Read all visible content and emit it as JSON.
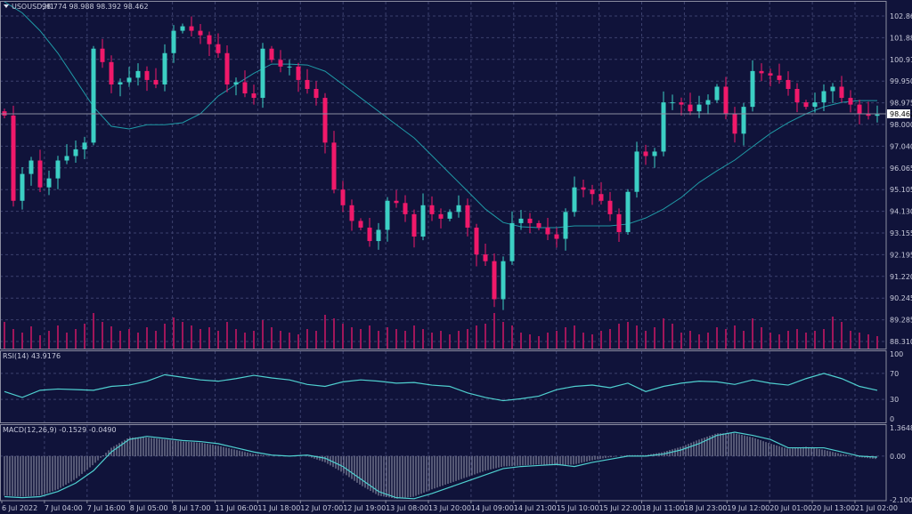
{
  "header": {
    "symbol": "USOUSD,H1",
    "ohlc": "98.774 98.988 98.392 98.462",
    "menu_icon": "triangle-down-icon"
  },
  "colors": {
    "background": "#10133a",
    "grid": "#3c416e",
    "bull": "#3ccfc4",
    "bear": "#f0196a",
    "ma": "#1f9aa6",
    "rsi": "#4fd0d0",
    "macd_line": "#4fd0d0",
    "macd_hist": "#9a9cb0",
    "volume": "#a0165a"
  },
  "chart_data": [
    {
      "type": "candlestick",
      "title": "USOUSD,H1",
      "price_ticks": [
        "102.860",
        "101.885",
        "100.910",
        "99.950",
        "98.975",
        "98.000",
        "97.040",
        "96.065",
        "95.105",
        "94.130",
        "93.155",
        "92.195",
        "91.220",
        "90.245",
        "89.285",
        "88.310"
      ],
      "ylim": [
        88.31,
        102.86
      ],
      "current_price": "98.462",
      "time_labels": [
        "6 Jul 2022",
        "7 Jul 04:00",
        "7 Jul 16:00",
        "8 Jul 05:00",
        "8 Jul 17:00",
        "11 Jul 06:00",
        "11 Jul 18:00",
        "12 Jul 07:00",
        "12 Jul 19:00",
        "13 Jul 08:00",
        "13 Jul 20:00",
        "14 Jul 09:00",
        "14 Jul 21:00",
        "15 Jul 10:00",
        "15 Jul 22:00",
        "18 Jul 11:00",
        "18 Jul 23:00",
        "19 Jul 12:00",
        "20 Jul 01:00",
        "20 Jul 13:00",
        "21 Jul 02:00"
      ],
      "closes": [
        98.41,
        94.6,
        95.8,
        96.4,
        95.2,
        95.6,
        96.4,
        96.6,
        96.9,
        97.2,
        101.4,
        100.8,
        99.8,
        99.9,
        100.1,
        100.4,
        100.0,
        99.8,
        101.2,
        102.2,
        102.4,
        102.2,
        102.0,
        101.6,
        101.2,
        99.8,
        99.9,
        99.4,
        99.2,
        101.4,
        100.9,
        100.6,
        100.6,
        100.0,
        99.6,
        99.2,
        97.2,
        95.1,
        94.4,
        93.7,
        93.4,
        92.8,
        93.3,
        94.6,
        94.5,
        94.0,
        93.0,
        94.4,
        94.0,
        93.8,
        94.1,
        94.4,
        93.4,
        92.2,
        91.9,
        90.2,
        91.9,
        93.6,
        93.8,
        93.6,
        93.4,
        93.1,
        92.9,
        94.1,
        95.2,
        95.1,
        94.9,
        94.6,
        94.0,
        93.2,
        95.0,
        96.8,
        96.6,
        96.8,
        99.0,
        99.0,
        98.9,
        98.6,
        98.9,
        99.1,
        99.7,
        98.5,
        97.6,
        98.8,
        100.4,
        100.3,
        100.2,
        100.0,
        99.6,
        99.0,
        98.8,
        99.0,
        99.5,
        99.7,
        99.2,
        98.9,
        98.5,
        98.4,
        98.46
      ],
      "moving_average": [
        103.6,
        103.0,
        102.2,
        101.2,
        100.0,
        98.8,
        97.93,
        97.81,
        98.0,
        98.0,
        98.09,
        98.49,
        99.28,
        99.8,
        100.3,
        100.71,
        100.71,
        100.67,
        100.39,
        99.8,
        99.2,
        98.6,
        98.0,
        97.41,
        96.62,
        95.82,
        95.03,
        94.23,
        93.63,
        93.44,
        93.4,
        93.4,
        93.48,
        93.48,
        93.48,
        93.56,
        93.83,
        94.23,
        94.75,
        95.42,
        95.94,
        96.42,
        97.02,
        97.61,
        98.09,
        98.49,
        98.8,
        99.0,
        99.08,
        99.08
      ],
      "volume": [
        30,
        22,
        18,
        25,
        15,
        20,
        26,
        18,
        22,
        28,
        40,
        30,
        25,
        20,
        22,
        18,
        24,
        20,
        28,
        35,
        30,
        26,
        22,
        24,
        20,
        30,
        22,
        18,
        20,
        32,
        24,
        20,
        18,
        16,
        22,
        20,
        38,
        34,
        28,
        24,
        22,
        26,
        20,
        24,
        22,
        20,
        26,
        22,
        18,
        20,
        16,
        20,
        22,
        26,
        28,
        40,
        30,
        26,
        18,
        16,
        14,
        18,
        20,
        24,
        26,
        18,
        16,
        20,
        22,
        28,
        30,
        26,
        20,
        24,
        34,
        28,
        18,
        20,
        16,
        18,
        24,
        22,
        26,
        20,
        34,
        24,
        18,
        16,
        20,
        22,
        18,
        20,
        22,
        36,
        30,
        20,
        18,
        16,
        14
      ]
    },
    {
      "type": "line",
      "title": "RSI(14) 43.9176",
      "ylim": [
        0,
        100
      ],
      "ticks": [
        "100",
        "70",
        "30",
        "0"
      ],
      "values": [
        42,
        33,
        44,
        46,
        45,
        44,
        50,
        52,
        58,
        68,
        64,
        60,
        58,
        62,
        67,
        63,
        60,
        53,
        50,
        57,
        60,
        58,
        55,
        56,
        52,
        50,
        40,
        33,
        28,
        31,
        35,
        45,
        50,
        52,
        48,
        55,
        42,
        50,
        55,
        58,
        57,
        53,
        60,
        55,
        52,
        62,
        70,
        62,
        50,
        43.9
      ]
    },
    {
      "type": "line",
      "title": "MACD(12,26,9) -0.1529 -0.0490",
      "ylim": [
        -2.1005,
        1.3648
      ],
      "ticks": [
        "1.3648",
        "0.00",
        "-2.1005"
      ],
      "signal": [
        -1.95,
        -2.0,
        -1.95,
        -1.7,
        -1.3,
        -0.7,
        0.2,
        0.8,
        0.95,
        0.85,
        0.75,
        0.7,
        0.6,
        0.4,
        0.2,
        0.05,
        0.0,
        0.05,
        -0.1,
        -0.5,
        -1.1,
        -1.7,
        -2.0,
        -2.05,
        -1.8,
        -1.5,
        -1.2,
        -0.9,
        -0.6,
        -0.5,
        -0.45,
        -0.4,
        -0.5,
        -0.3,
        -0.15,
        0.0,
        0.0,
        0.1,
        0.3,
        0.6,
        1.0,
        1.15,
        1.0,
        0.8,
        0.4,
        0.4,
        0.4,
        0.2,
        0.0,
        -0.05
      ],
      "histogram": [
        -1.9,
        -1.95,
        -1.9,
        -1.6,
        -1.1,
        -0.4,
        0.4,
        0.9,
        0.9,
        0.8,
        0.7,
        0.65,
        0.5,
        0.3,
        0.1,
        0.0,
        0.0,
        0.0,
        -0.3,
        -0.8,
        -1.4,
        -1.9,
        -2.05,
        -1.95,
        -1.6,
        -1.3,
        -1.0,
        -0.7,
        -0.5,
        -0.45,
        -0.4,
        -0.45,
        -0.4,
        -0.2,
        -0.05,
        0.05,
        0.05,
        0.2,
        0.45,
        0.8,
        1.1,
        1.1,
        0.9,
        0.6,
        0.35,
        0.45,
        0.3,
        0.1,
        -0.05,
        -0.15
      ]
    }
  ]
}
